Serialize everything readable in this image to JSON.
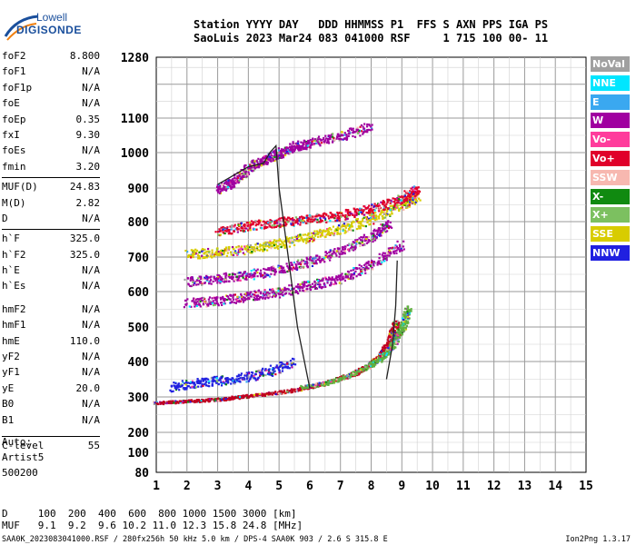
{
  "logo": {
    "top": "Lowell",
    "bottom": "DIGISONDE"
  },
  "header": {
    "line1": "Station YYYY DAY   DDD HHMMSS P1  FFS S AXN PPS IGA PS",
    "line2": "SaoLuis 2023 Mar24 083 041000 RSF     1 715 100 00- 11"
  },
  "params": [
    {
      "k": "foF2",
      "v": "8.800"
    },
    {
      "k": "foF1",
      "v": "N/A"
    },
    {
      "k": "foF1p",
      "v": "N/A"
    },
    {
      "k": "foE",
      "v": "N/A"
    },
    {
      "k": "foEp",
      "v": "0.35"
    },
    {
      "k": "fxI",
      "v": "9.30"
    },
    {
      "k": "foEs",
      "v": "N/A"
    },
    {
      "k": "fmin",
      "v": "3.20"
    },
    {
      "k": "MUF(D)",
      "v": "24.83"
    },
    {
      "k": "M(D)",
      "v": "2.82"
    },
    {
      "k": "D",
      "v": "N/A"
    },
    {
      "k": "h`F",
      "v": "325.0"
    },
    {
      "k": "h`F2",
      "v": "325.0"
    },
    {
      "k": "h`E",
      "v": "N/A"
    },
    {
      "k": "h`Es",
      "v": "N/A"
    },
    {
      "k": "hmF2",
      "v": "N/A"
    },
    {
      "k": "hmF1",
      "v": "N/A"
    },
    {
      "k": "hmE",
      "v": "110.0"
    },
    {
      "k": "yF2",
      "v": "N/A"
    },
    {
      "k": "yF1",
      "v": "N/A"
    },
    {
      "k": "yE",
      "v": "20.0"
    },
    {
      "k": "B0",
      "v": "N/A"
    },
    {
      "k": "B1",
      "v": "N/A"
    },
    {
      "k": "C-level",
      "v": "55"
    }
  ],
  "auto": {
    "label": "Auto:",
    "artist": "Artist5",
    "version": "500200"
  },
  "legend": [
    {
      "label": "NoVal",
      "color": "#a0a0a0"
    },
    {
      "label": "NNE",
      "color": "#00e6ff"
    },
    {
      "label": "E",
      "color": "#3aa8f0"
    },
    {
      "label": "W",
      "color": "#a000a0"
    },
    {
      "label": "Vo-",
      "color": "#ff3c9c"
    },
    {
      "label": "Vo+",
      "color": "#e0002a"
    },
    {
      "label": "SSW",
      "color": "#f7b8b0"
    },
    {
      "label": "X-",
      "color": "#108a10"
    },
    {
      "label": "X+",
      "color": "#7cc060"
    },
    {
      "label": "SSE",
      "color": "#d8cc00"
    },
    {
      "label": "NNW",
      "color": "#2020e0"
    }
  ],
  "footer": {
    "d_line": "D     100  200  400  600  800 1000 1500 3000 [km]",
    "muf_line": "MUF   9.1  9.2  9.6 10.2 11.0 12.3 15.8 24.8 [MHz]",
    "source": "SAA0K_2023083041000.RSF / 280fx256h 50 kHz 5.0 km / DPS-4 SAA0K 903 / 2.6 S 315.8 E",
    "version": "Ion2Png 1.3.17"
  },
  "chart_data": {
    "type": "scatter",
    "xlim": [
      1,
      15
    ],
    "ylim": [
      80,
      1280
    ],
    "x_ticks": [
      1,
      2,
      3,
      4,
      5,
      6,
      7,
      8,
      9,
      10,
      11,
      12,
      13,
      14,
      15
    ],
    "y_ticks": [
      80,
      100,
      200,
      300,
      400,
      500,
      600,
      700,
      800,
      900,
      1000,
      1100,
      1280
    ],
    "grid": true,
    "traces": [
      {
        "name": "O-trace F",
        "color": "#c00020",
        "x": [
          1.0,
          2.0,
          3.0,
          4.0,
          5.0,
          6.0,
          7.0,
          7.5,
          8.0,
          8.3,
          8.6,
          8.8
        ],
        "y": [
          285,
          290,
          295,
          305,
          315,
          330,
          355,
          370,
          395,
          420,
          460,
          520
        ]
      },
      {
        "name": "X-trace F",
        "color": "#60b040",
        "x": [
          5.8,
          6.5,
          7.2,
          7.8,
          8.3,
          8.7,
          9.0,
          9.2
        ],
        "y": [
          330,
          340,
          360,
          385,
          410,
          450,
          500,
          560
        ]
      },
      {
        "name": "Second hop",
        "color": "#2020e0",
        "x": [
          1.5,
          2.5,
          3.5,
          4.5,
          5.5
        ],
        "y": [
          330,
          345,
          350,
          370,
          400
        ]
      },
      {
        "name": "Oblique 1",
        "color": "#a000a0",
        "x": [
          2.0,
          3.0,
          4.0,
          5.0,
          6.0,
          7.0,
          8.0,
          9.0
        ],
        "y": [
          570,
          575,
          590,
          600,
          620,
          640,
          680,
          740
        ]
      },
      {
        "name": "Oblique 2",
        "color": "#a000a0",
        "x": [
          2.0,
          3.0,
          4.0,
          5.0,
          6.0,
          7.0,
          8.0,
          8.6
        ],
        "y": [
          630,
          640,
          650,
          665,
          690,
          720,
          760,
          800
        ]
      },
      {
        "name": "Oblique 3",
        "color": "#d8cc00",
        "x": [
          2.0,
          3.0,
          4.0,
          5.0,
          6.0,
          7.0,
          8.0,
          9.0,
          9.5
        ],
        "y": [
          710,
          715,
          725,
          740,
          760,
          780,
          810,
          850,
          880
        ]
      },
      {
        "name": "Oblique 4",
        "color": "#e0002a",
        "x": [
          3.0,
          4.0,
          5.0,
          6.0,
          7.0,
          8.0,
          9.0,
          9.5
        ],
        "y": [
          775,
          790,
          800,
          810,
          820,
          840,
          870,
          900
        ]
      },
      {
        "name": "Upper",
        "color": "#a000a0",
        "x": [
          3.0,
          3.5,
          4.0,
          4.5,
          5.0,
          5.5,
          6.0,
          7.0,
          8.0
        ],
        "y": [
          900,
          920,
          960,
          980,
          1000,
          1020,
          1030,
          1050,
          1080
        ]
      }
    ],
    "profile": {
      "x": [
        6.0,
        5.6,
        5.3,
        5.0,
        4.9,
        4.7,
        4.5,
        4.0,
        3.5,
        3.0
      ],
      "y": [
        325,
        500,
        700,
        900,
        1020,
        1000,
        970,
        960,
        935,
        910
      ]
    },
    "cusp_line": {
      "x": [
        8.5,
        8.7,
        8.8,
        8.85
      ],
      "y": [
        350,
        450,
        560,
        690
      ]
    }
  }
}
